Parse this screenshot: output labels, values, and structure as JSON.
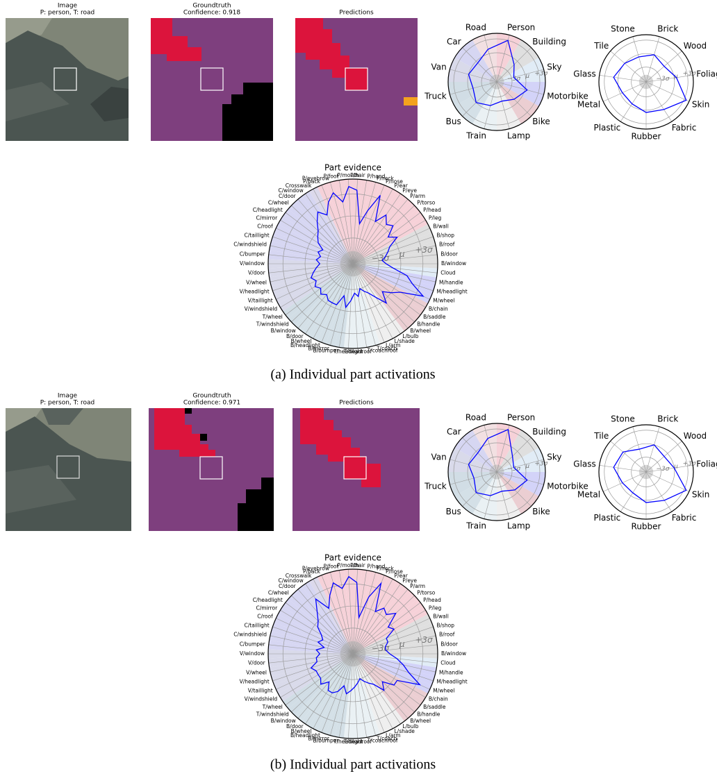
{
  "panels": [
    {
      "image": {
        "title": "Image",
        "subtitle": "P: person, T: road"
      },
      "groundtruth": {
        "title": "Groundtruth",
        "subtitle": "Confidence: 0.918"
      },
      "predictions": {
        "title": "Predictions"
      },
      "chart_data": [
        {
          "type": "radar",
          "categories": [
            "Person",
            "Building",
            "Sky",
            "Motorbike",
            "Bike",
            "Lamp",
            "Train",
            "Bus",
            "Truck",
            "Van",
            "Car",
            "Road"
          ],
          "values": [
            3,
            -1,
            -2.5,
            0.5,
            -1,
            -2,
            -1,
            0,
            -1,
            0,
            -0.5,
            1
          ],
          "rlim": [
            -6.3,
            4.2
          ],
          "rticks": [
            {
              "value": -3,
              "label": "−3σ"
            },
            {
              "value": 0,
              "label": "μ"
            },
            {
              "value": 3,
              "label": "+3σ"
            }
          ],
          "color": "#0000ff",
          "sector_colors": [
            "#f4c9d1",
            "#d9d9d9",
            "#dce9f5",
            "#cbcbf7",
            "#e8c6ca",
            "#ececec",
            "#e6eef2",
            "#ccdbe3",
            "#c9d7e0",
            "#d2d3e6",
            "#cfcff0",
            "#f0dadd"
          ]
        },
        {
          "type": "radar",
          "categories": [
            "Brick",
            "Wood",
            "Foliage",
            "Skin",
            "Fabric",
            "Rubber",
            "Plastic",
            "Metal",
            "Glass",
            "Tile",
            "Stone"
          ],
          "values": [
            0,
            -1,
            0.5,
            3.5,
            1,
            0.5,
            -0.5,
            -0.5,
            1,
            0,
            -0.5
          ],
          "rlim": [
            -6.3,
            4.2
          ],
          "rticks": [
            {
              "value": -3,
              "label": "−3σ"
            },
            {
              "value": 0,
              "label": "μ"
            },
            {
              "value": 3,
              "label": "+3σ"
            }
          ],
          "color": "#0000ff"
        },
        {
          "type": "radar",
          "title": "Part evidence",
          "categories": [
            "P/hair",
            "P/hand",
            "P/neck",
            "P/nose",
            "P/ear",
            "P/eye",
            "P/arm",
            "P/torso",
            "P/head",
            "P/leg",
            "B/wall",
            "B/shop",
            "B/roof",
            "B/door",
            "B/window",
            "Cloud",
            "M/handle",
            "M/headlight",
            "M/wheel",
            "B/chain",
            "B/saddle",
            "B/handle",
            "B/wheel",
            "L/bulb",
            "L/shade",
            "L/arm",
            "T/coach",
            "T/coachroof",
            "T/headroof",
            "T/headlight",
            "B/bumper",
            "B/mirror",
            "B/headlight",
            "B/wheel",
            "B/door",
            "B/window",
            "T/windshield",
            "T/wheel",
            "V/windshield",
            "V/taillight",
            "V/headlight",
            "V/wheel",
            "V/door",
            "V/window",
            "C/bumper",
            "C/windshield",
            "C/taillight",
            "C/roof",
            "C/mirror",
            "C/headlight",
            "C/wheel",
            "C/door",
            "C/window",
            "Crosswalk",
            "P/back",
            "P/eyebrow",
            "P/foot",
            "P/mouth"
          ],
          "values": [
            3.5,
            -1,
            1,
            3.5,
            0,
            1.5,
            0.5,
            1,
            -0.5,
            0.5,
            -1,
            -1.5,
            -2,
            -2.5,
            -2,
            -1,
            1,
            2,
            4,
            1,
            0,
            -1,
            0.5,
            -1,
            -2,
            -2.5,
            -3,
            -2,
            -2.5,
            -1.5,
            -0.5,
            -2,
            -0.5,
            -0.5,
            -0.5,
            -1,
            -0.5,
            -1,
            -0.5,
            -1,
            -0.5,
            -1,
            -1.5,
            -2,
            -1.5,
            -2,
            -1.5,
            -2,
            -1,
            -0.5,
            0,
            1,
            2,
            1,
            2.5,
            3.5,
            2,
            4
          ],
          "rlim": [
            -6.5,
            5
          ],
          "rticks": [
            {
              "value": -3,
              "label": "−3σ"
            },
            {
              "value": 0,
              "label": "μ"
            },
            {
              "value": 3,
              "label": "+3σ"
            }
          ],
          "color": "#0000ff",
          "sector_colors": [
            "#f4c9d1",
            "#f4c9d1",
            "#f4c9d1",
            "#f4c9d1",
            "#f4c9d1",
            "#f4c9d1",
            "#f4c9d1",
            "#f4c9d1",
            "#f4c9d1",
            "#f4c9d1",
            "#d9d9d9",
            "#d9d9d9",
            "#d9d9d9",
            "#d9d9d9",
            "#d9d9d9",
            "#dce9f5",
            "#cbcbf7",
            "#cbcbf7",
            "#cbcbf7",
            "#e8c6ca",
            "#e8c6ca",
            "#e8c6ca",
            "#e8c6ca",
            "#ececec",
            "#ececec",
            "#ececec",
            "#e6eef2",
            "#e6eef2",
            "#e6eef2",
            "#e6eef2",
            "#ccdbe3",
            "#ccdbe3",
            "#ccdbe3",
            "#ccdbe3",
            "#ccdbe3",
            "#ccdbe3",
            "#c9d7e0",
            "#c9d7e0",
            "#d2d3e6",
            "#d2d3e6",
            "#d2d3e6",
            "#d2d3e6",
            "#d2d3e6",
            "#d2d3e6",
            "#cfcff0",
            "#cfcff0",
            "#cfcff0",
            "#cfcff0",
            "#cfcff0",
            "#cfcff0",
            "#cfcff0",
            "#cfcff0",
            "#cfcff0",
            "#d6d2e8",
            "#f4c9d1",
            "#f4c9d1",
            "#f4c9d1",
            "#f4c9d1"
          ]
        }
      ],
      "caption": "(a) Individual part activations"
    },
    {
      "image": {
        "title": "Image",
        "subtitle": "P: person, T: road"
      },
      "groundtruth": {
        "title": "Groundtruth",
        "subtitle": "Confidence: 0.971"
      },
      "predictions": {
        "title": "Predictions"
      },
      "chart_data": [
        {
          "type": "radar",
          "categories": [
            "Person",
            "Building",
            "Sky",
            "Motorbike",
            "Bike",
            "Lamp",
            "Train",
            "Bus",
            "Truck",
            "Van",
            "Car",
            "Road"
          ],
          "values": [
            3.2,
            -1.5,
            -2.5,
            0.5,
            -0.8,
            -2,
            -1,
            0,
            -1.2,
            0,
            -0.5,
            1.2
          ],
          "rlim": [
            -6.3,
            4.2
          ],
          "rticks": [
            {
              "value": -3,
              "label": "−3σ"
            },
            {
              "value": 0,
              "label": "μ"
            },
            {
              "value": 3,
              "label": "+3σ"
            }
          ],
          "color": "#0000ff",
          "sector_colors": [
            "#f4c9d1",
            "#d9d9d9",
            "#dce9f5",
            "#cbcbf7",
            "#e8c6ca",
            "#ececec",
            "#e6eef2",
            "#ccdbe3",
            "#c9d7e0",
            "#d2d3e6",
            "#cfcff0",
            "#f0dadd"
          ]
        },
        {
          "type": "radar",
          "categories": [
            "Brick",
            "Wood",
            "Foliage",
            "Skin",
            "Fabric",
            "Rubber",
            "Plastic",
            "Metal",
            "Glass",
            "Tile",
            "Stone"
          ],
          "values": [
            0,
            -1,
            0,
            3.5,
            1.2,
            0.5,
            -0.8,
            -0.5,
            1,
            0.5,
            -1
          ],
          "rlim": [
            -6.3,
            4.2
          ],
          "rticks": [
            {
              "value": -3,
              "label": "−3σ"
            },
            {
              "value": 0,
              "label": "μ"
            },
            {
              "value": 3,
              "label": "+3σ"
            }
          ],
          "color": "#0000ff"
        },
        {
          "type": "radar",
          "title": "Part evidence",
          "categories": [
            "P/hair",
            "P/hand",
            "P/neck",
            "P/nose",
            "P/ear",
            "P/eye",
            "P/arm",
            "P/torso",
            "P/head",
            "P/leg",
            "B/wall",
            "B/shop",
            "B/roof",
            "B/door",
            "B/window",
            "Cloud",
            "M/handle",
            "M/headlight",
            "M/wheel",
            "B/chain",
            "B/saddle",
            "B/handle",
            "B/wheel",
            "L/bulb",
            "L/shade",
            "L/arm",
            "T/coach",
            "T/coachroof",
            "T/headroof",
            "T/headlight",
            "B/bumper",
            "B/mirror",
            "B/headlight",
            "B/wheel",
            "B/door",
            "B/window",
            "T/windshield",
            "T/wheel",
            "V/windshield",
            "V/taillight",
            "V/headlight",
            "V/wheel",
            "V/door",
            "V/window",
            "C/bumper",
            "C/windshield",
            "C/taillight",
            "C/roof",
            "C/mirror",
            "C/headlight",
            "C/wheel",
            "C/door",
            "C/window",
            "Crosswalk",
            "P/back",
            "P/eyebrow",
            "P/foot",
            "P/mouth"
          ],
          "values": [
            3.2,
            -1.5,
            1.5,
            3.8,
            0,
            1,
            0.5,
            1.5,
            -0.5,
            0,
            -1.5,
            -1.5,
            -2,
            -2,
            -1.5,
            -0.5,
            0.5,
            1.5,
            3.5,
            0.5,
            0.5,
            -1,
            0,
            -1.5,
            -2,
            -2.5,
            -3,
            -2.5,
            -2,
            -1.5,
            -1,
            -2,
            -1,
            -0.5,
            -0.5,
            -1.5,
            -0.5,
            -1,
            -1,
            -1,
            -0.5,
            -1.5,
            -1.5,
            -2,
            -1.5,
            -2.5,
            -1.5,
            -2,
            -1.5,
            -0.5,
            0,
            1,
            2.5,
            0.5,
            2,
            3.5,
            2.5,
            4
          ],
          "rlim": [
            -6.5,
            5
          ],
          "rticks": [
            {
              "value": -3,
              "label": "−3σ"
            },
            {
              "value": 0,
              "label": "μ"
            },
            {
              "value": 3,
              "label": "+3σ"
            }
          ],
          "color": "#0000ff",
          "sector_colors": [
            "#f4c9d1",
            "#f4c9d1",
            "#f4c9d1",
            "#f4c9d1",
            "#f4c9d1",
            "#f4c9d1",
            "#f4c9d1",
            "#f4c9d1",
            "#f4c9d1",
            "#f4c9d1",
            "#d9d9d9",
            "#d9d9d9",
            "#d9d9d9",
            "#d9d9d9",
            "#d9d9d9",
            "#dce9f5",
            "#cbcbf7",
            "#cbcbf7",
            "#cbcbf7",
            "#e8c6ca",
            "#e8c6ca",
            "#e8c6ca",
            "#e8c6ca",
            "#ececec",
            "#ececec",
            "#ececec",
            "#e6eef2",
            "#e6eef2",
            "#e6eef2",
            "#e6eef2",
            "#ccdbe3",
            "#ccdbe3",
            "#ccdbe3",
            "#ccdbe3",
            "#ccdbe3",
            "#ccdbe3",
            "#c9d7e0",
            "#c9d7e0",
            "#d2d3e6",
            "#d2d3e6",
            "#d2d3e6",
            "#d2d3e6",
            "#d2d3e6",
            "#d2d3e6",
            "#cfcff0",
            "#cfcff0",
            "#cfcff0",
            "#cfcff0",
            "#cfcff0",
            "#cfcff0",
            "#cfcff0",
            "#cfcff0",
            "#cfcff0",
            "#d6d2e8",
            "#f4c9d1",
            "#f4c9d1",
            "#f4c9d1",
            "#f4c9d1"
          ]
        }
      ],
      "caption": "(b) Individual part activations"
    }
  ]
}
